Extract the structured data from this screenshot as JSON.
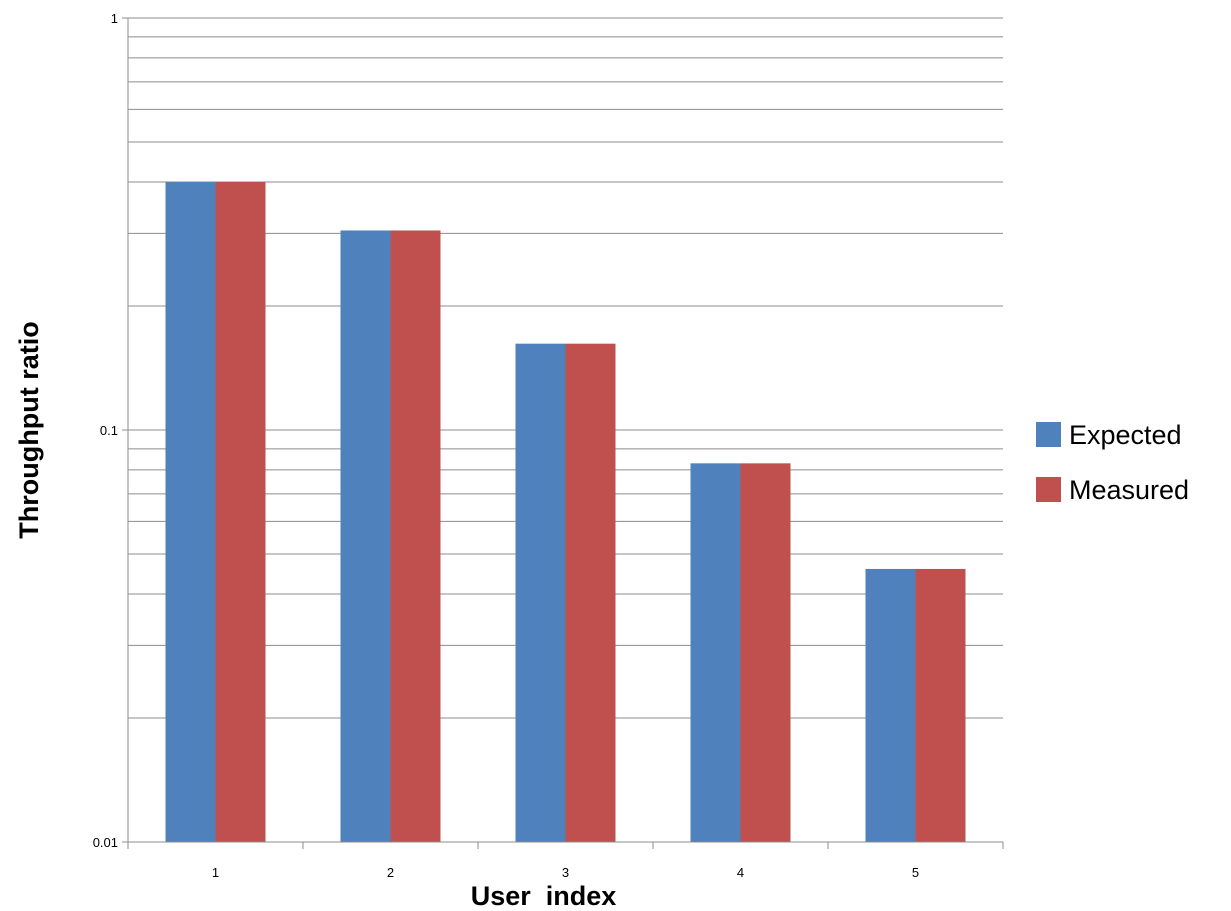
{
  "chart_data": {
    "type": "bar",
    "y_scale": "log",
    "categories": [
      "1",
      "2",
      "3",
      "4",
      "5"
    ],
    "series": [
      {
        "name": "Expected",
        "color": "#4F81BD",
        "values": [
          0.4,
          0.305,
          0.162,
          0.083,
          0.046
        ]
      },
      {
        "name": "Measured",
        "color": "#C0504D",
        "values": [
          0.4,
          0.305,
          0.162,
          0.083,
          0.046
        ]
      }
    ],
    "ylim": [
      0.01,
      1
    ],
    "yticks": [
      {
        "value": 0.01,
        "label": "0.01"
      },
      {
        "value": 0.1,
        "label": "0.1"
      },
      {
        "value": 1,
        "label": "1"
      }
    ],
    "xlabel": "User  index",
    "ylabel": "Throughput ratio",
    "grid": "horizontal major and minor",
    "legend_position": "right"
  }
}
